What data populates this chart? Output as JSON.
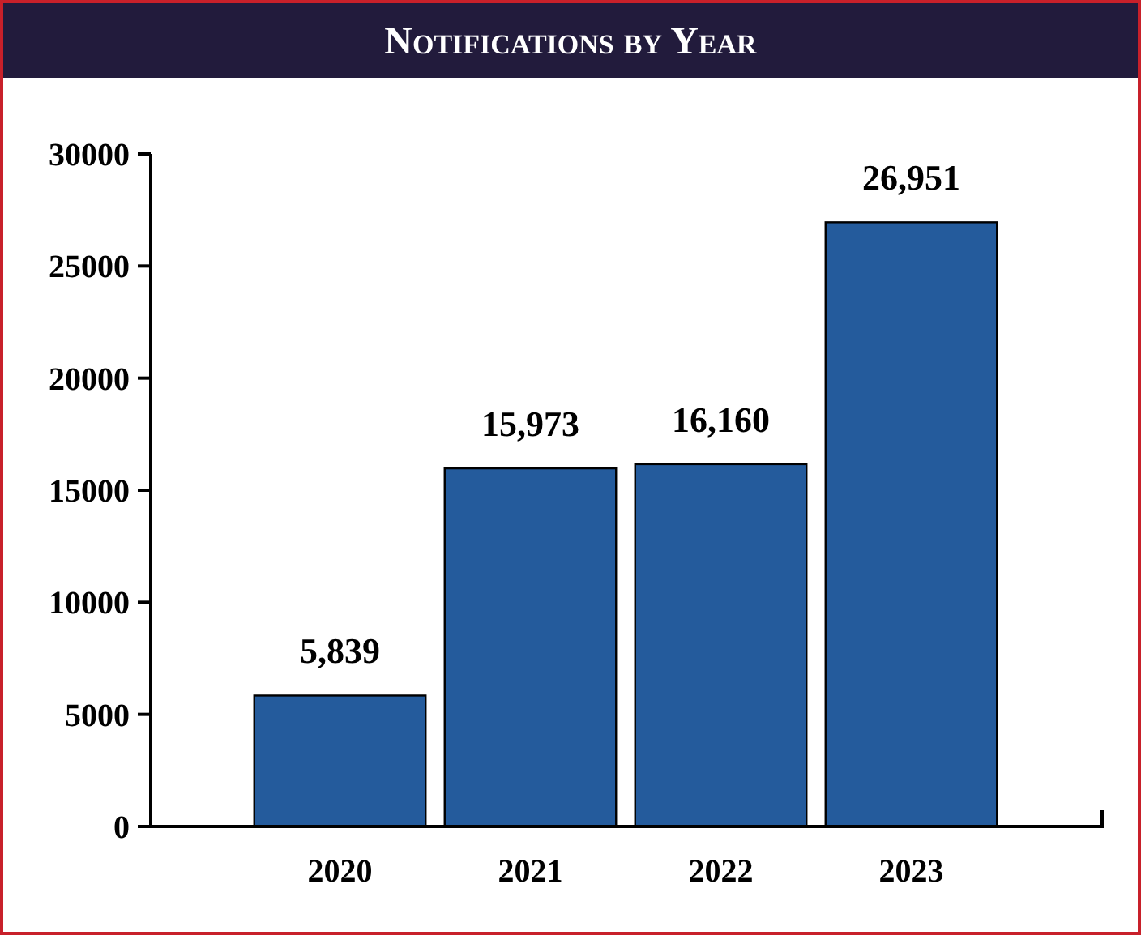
{
  "chart_data": {
    "type": "bar",
    "title": "Notifications by Year",
    "categories": [
      "2020",
      "2021",
      "2022",
      "2023"
    ],
    "values": [
      5839,
      15973,
      16160,
      26951
    ],
    "value_labels": [
      "5,839",
      "15,973",
      "16,160",
      "26,951"
    ],
    "color": "#245b9c",
    "ylim": [
      0,
      30000
    ],
    "yticks": [
      0,
      5000,
      10000,
      15000,
      20000,
      25000,
      30000
    ],
    "grid": false
  }
}
